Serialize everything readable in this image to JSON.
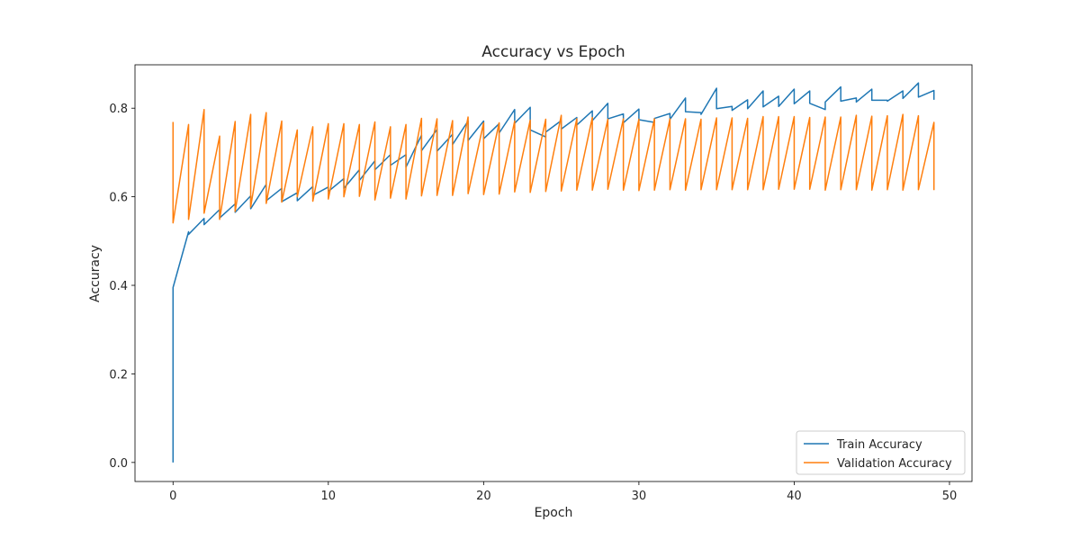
{
  "chart_data": {
    "type": "line",
    "title": "Accuracy vs Epoch",
    "xlabel": "Epoch",
    "ylabel": "Accuracy",
    "xlim": [
      -2.45,
      51.45
    ],
    "ylim": [
      -0.043,
      0.898
    ],
    "x_ticks": [
      0,
      10,
      20,
      30,
      40,
      50
    ],
    "y_ticks": [
      0.0,
      0.2,
      0.4,
      0.6,
      0.8
    ],
    "x_tick_labels": [
      "0",
      "10",
      "20",
      "30",
      "40",
      "50"
    ],
    "y_tick_labels": [
      "0.0",
      "0.2",
      "0.4",
      "0.6",
      "0.8"
    ],
    "grid": false,
    "legend_position": "lower-right",
    "series": [
      {
        "name": "Train Accuracy",
        "color": "#1f77b4",
        "x": [
          0.0,
          0.0,
          1.0,
          1.0,
          2.0,
          2.0,
          3.0,
          3.0,
          4.0,
          4.0,
          5.0,
          5.0,
          6.0,
          6.0,
          7.0,
          7.0,
          8.0,
          8.0,
          9.0,
          9.0,
          10.0,
          10.0,
          11.0,
          11.0,
          12.0,
          12.0,
          13.0,
          13.0,
          14.0,
          14.0,
          15.0,
          15.0,
          16.0,
          16.0,
          17.0,
          17.0,
          18.0,
          18.0,
          19.0,
          19.0,
          20.0,
          20.0,
          21.0,
          21.0,
          22.0,
          22.0,
          23.0,
          23.0,
          24.0,
          24.0,
          25.0,
          25.0,
          26.0,
          26.0,
          27.0,
          27.0,
          28.0,
          28.0,
          29.0,
          29.0,
          30.0,
          30.0,
          31.0,
          31.0,
          32.0,
          32.0,
          33.0,
          33.0,
          34.0,
          34.0,
          35.0,
          35.0,
          36.0,
          36.0,
          37.0,
          37.0,
          38.0,
          38.0,
          39.0,
          39.0,
          40.0,
          40.0,
          41.0,
          41.0,
          42.0,
          42.0,
          43.0,
          43.0,
          44.0,
          44.0,
          45.0,
          45.0,
          46.0,
          46.0,
          47.0,
          47.0,
          48.0,
          48.0,
          49.0,
          49.0
        ],
        "values": [
          0.0,
          0.395,
          0.521,
          0.515,
          0.551,
          0.537,
          0.571,
          0.552,
          0.584,
          0.565,
          0.602,
          0.573,
          0.628,
          0.591,
          0.619,
          0.589,
          0.609,
          0.591,
          0.623,
          0.603,
          0.622,
          0.612,
          0.641,
          0.619,
          0.661,
          0.637,
          0.681,
          0.661,
          0.695,
          0.671,
          0.695,
          0.667,
          0.739,
          0.704,
          0.752,
          0.703,
          0.741,
          0.718,
          0.771,
          0.727,
          0.771,
          0.731,
          0.765,
          0.744,
          0.797,
          0.766,
          0.802,
          0.751,
          0.735,
          0.746,
          0.772,
          0.753,
          0.779,
          0.762,
          0.794,
          0.772,
          0.811,
          0.776,
          0.787,
          0.767,
          0.798,
          0.774,
          0.768,
          0.777,
          0.788,
          0.775,
          0.823,
          0.792,
          0.79,
          0.786,
          0.845,
          0.799,
          0.804,
          0.795,
          0.819,
          0.799,
          0.839,
          0.803,
          0.827,
          0.804,
          0.843,
          0.81,
          0.839,
          0.811,
          0.797,
          0.814,
          0.848,
          0.816,
          0.823,
          0.814,
          0.843,
          0.818,
          0.818,
          0.816,
          0.839,
          0.822,
          0.857,
          0.825,
          0.84,
          0.819
        ]
      },
      {
        "name": "Validation Accuracy",
        "color": "#ff7f0e",
        "x": [
          0.0,
          0.0,
          1.0,
          1.0,
          2.0,
          2.0,
          3.0,
          3.0,
          4.0,
          4.0,
          5.0,
          5.0,
          6.0,
          6.0,
          7.0,
          7.0,
          8.0,
          8.0,
          9.0,
          9.0,
          10.0,
          10.0,
          11.0,
          11.0,
          12.0,
          12.0,
          13.0,
          13.0,
          14.0,
          14.0,
          15.0,
          15.0,
          16.0,
          16.0,
          17.0,
          17.0,
          18.0,
          18.0,
          19.0,
          19.0,
          20.0,
          20.0,
          21.0,
          21.0,
          22.0,
          22.0,
          23.0,
          23.0,
          24.0,
          24.0,
          25.0,
          25.0,
          26.0,
          26.0,
          27.0,
          27.0,
          28.0,
          28.0,
          29.0,
          29.0,
          30.0,
          30.0,
          31.0,
          31.0,
          32.0,
          32.0,
          33.0,
          33.0,
          34.0,
          34.0,
          35.0,
          35.0,
          36.0,
          36.0,
          37.0,
          37.0,
          38.0,
          38.0,
          39.0,
          39.0,
          40.0,
          40.0,
          41.0,
          41.0,
          42.0,
          42.0,
          43.0,
          43.0,
          44.0,
          44.0,
          45.0,
          45.0,
          46.0,
          46.0,
          47.0,
          47.0,
          48.0,
          48.0,
          49.0,
          49.0
        ],
        "values": [
          0.769,
          0.541,
          0.763,
          0.549,
          0.797,
          0.563,
          0.737,
          0.549,
          0.77,
          0.567,
          0.786,
          0.577,
          0.79,
          0.585,
          0.771,
          0.588,
          0.751,
          0.6,
          0.758,
          0.59,
          0.765,
          0.595,
          0.765,
          0.6,
          0.763,
          0.601,
          0.769,
          0.593,
          0.758,
          0.597,
          0.763,
          0.595,
          0.777,
          0.602,
          0.776,
          0.603,
          0.772,
          0.603,
          0.78,
          0.607,
          0.767,
          0.605,
          0.767,
          0.606,
          0.771,
          0.611,
          0.773,
          0.61,
          0.775,
          0.612,
          0.784,
          0.613,
          0.776,
          0.615,
          0.779,
          0.615,
          0.775,
          0.617,
          0.776,
          0.615,
          0.775,
          0.614,
          0.776,
          0.615,
          0.776,
          0.616,
          0.776,
          0.615,
          0.775,
          0.616,
          0.778,
          0.616,
          0.778,
          0.616,
          0.777,
          0.616,
          0.781,
          0.616,
          0.781,
          0.617,
          0.781,
          0.617,
          0.779,
          0.617,
          0.78,
          0.615,
          0.78,
          0.616,
          0.784,
          0.616,
          0.782,
          0.615,
          0.783,
          0.616,
          0.786,
          0.615,
          0.783,
          0.616,
          0.768,
          0.615
        ]
      }
    ]
  }
}
